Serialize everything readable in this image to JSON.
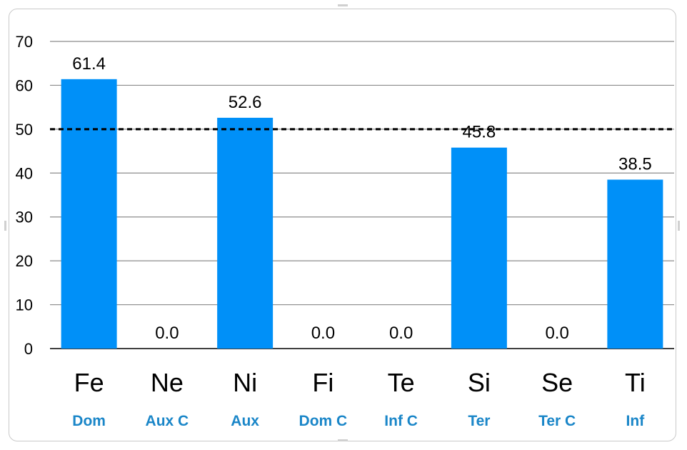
{
  "chart_data": {
    "type": "bar",
    "categories": [
      "Fe",
      "Ne",
      "Ni",
      "Fi",
      "Te",
      "Si",
      "Se",
      "Ti"
    ],
    "sublabels": [
      "Dom",
      "Aux C",
      "Aux",
      "Dom C",
      "Inf C",
      "Ter",
      "Ter C",
      "Inf"
    ],
    "values": [
      61.4,
      0.0,
      52.6,
      0.0,
      0.0,
      45.8,
      0.0,
      38.5
    ],
    "value_labels": [
      "61.4",
      "0.0",
      "52.6",
      "0.0",
      "0.0",
      "45.8",
      "0.0",
      "38.5"
    ],
    "y_ticks": [
      "0",
      "10",
      "20",
      "30",
      "40",
      "50",
      "60",
      "70"
    ],
    "ylim": [
      0,
      70
    ],
    "reference_line": 50,
    "grid": true,
    "colors": {
      "bar": "#0090f8",
      "sublabel": "#1a86c8",
      "grid": "#8c8c8c",
      "axis": "#000000",
      "reference": "#000000"
    }
  }
}
